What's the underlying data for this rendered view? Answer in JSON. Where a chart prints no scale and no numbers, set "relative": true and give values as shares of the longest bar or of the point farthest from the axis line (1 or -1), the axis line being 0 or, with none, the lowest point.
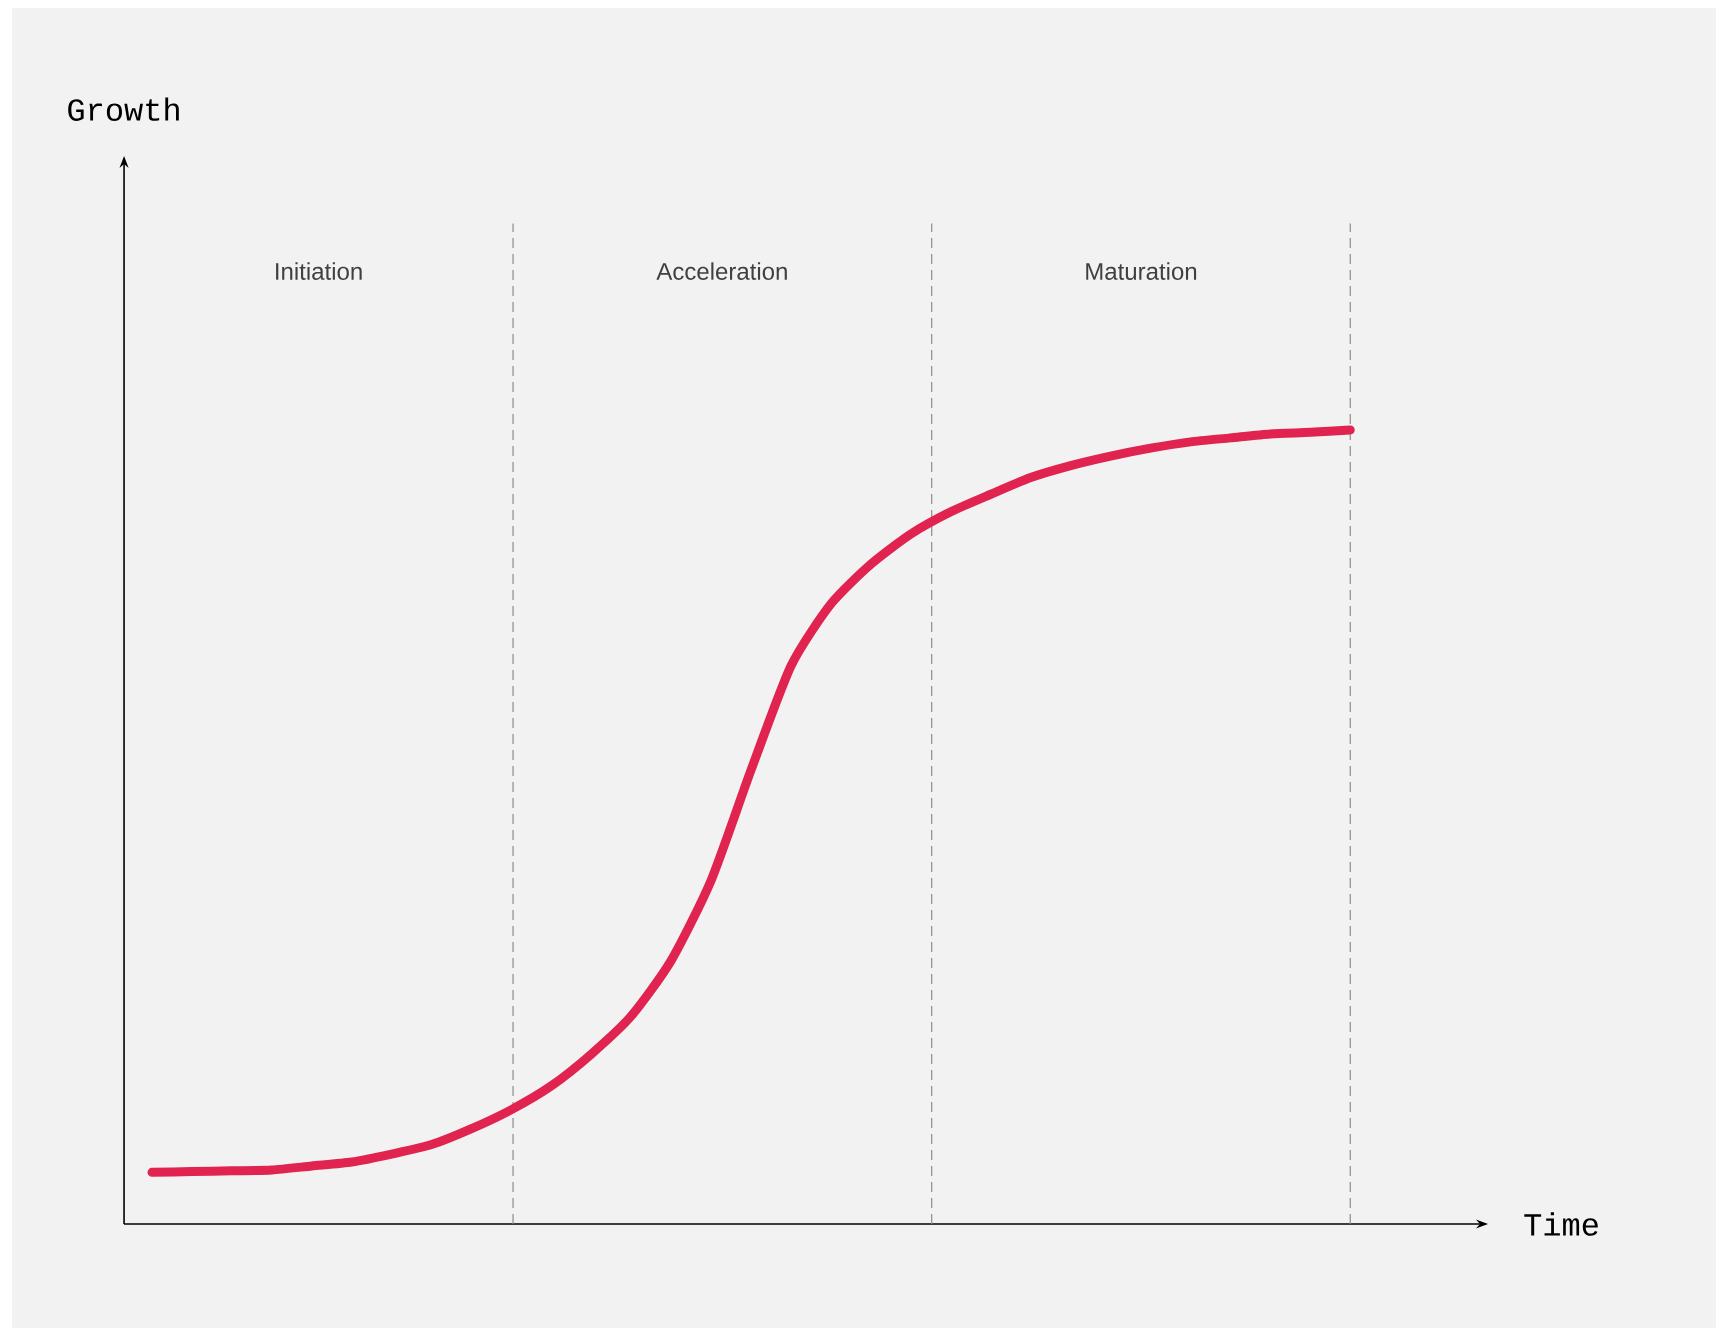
{
  "chart_data": {
    "type": "line",
    "relative": true,
    "xlabel": "Time",
    "categories": [
      null,
      null,
      null,
      null,
      null,
      null,
      null,
      null,
      null,
      null,
      null,
      null,
      null,
      null,
      null,
      null,
      null,
      null,
      null,
      null,
      null,
      null,
      null,
      null,
      null,
      null,
      null,
      null,
      null,
      null,
      null
    ],
    "series": [
      {
        "color": "#e0234f",
        "values": [
          0.065,
          0.066,
          0.067,
          0.068,
          0.073,
          0.078,
          0.088,
          0.1,
          0.12,
          0.144,
          0.174,
          0.214,
          0.262,
          0.332,
          0.433,
          0.572,
          0.703,
          0.781,
          0.831,
          0.869,
          0.897,
          0.919,
          0.94,
          0.955,
          0.967,
          0.977,
          0.985,
          0.99,
          0.995,
          0.997,
          1.0
        ]
      }
    ],
    "annotations": [
      "Initiation",
      "Acceleration",
      "Maturation",
      "Growth"
    ]
  }
}
